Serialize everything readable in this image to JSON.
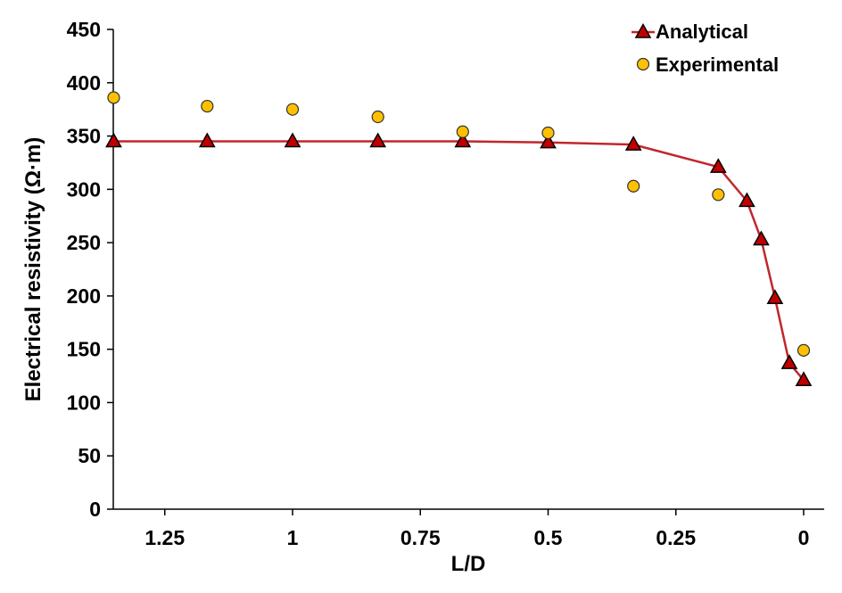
{
  "chart_data": {
    "type": "line",
    "xlabel": "L/D",
    "ylabel": "Electrical resistivity (Ω·m)",
    "xlim": [
      1.35,
      0
    ],
    "x_reversed": true,
    "ylim": [
      0,
      450
    ],
    "x_ticks": [
      1.25,
      1,
      0.75,
      0.5,
      0.25,
      0
    ],
    "x_tick_labels": [
      "1.25",
      "1",
      "0.75",
      "0.5",
      "0.25",
      "0"
    ],
    "y_ticks": [
      0,
      50,
      100,
      150,
      200,
      250,
      300,
      350,
      400,
      450
    ],
    "y_tick_labels": [
      "0",
      "50",
      "100",
      "150",
      "200",
      "250",
      "300",
      "350",
      "400",
      "450"
    ],
    "grid": false,
    "legend_position": "top-right",
    "series": [
      {
        "name": "Analytical",
        "marker": "triangle",
        "line": true,
        "marker_color": "#C00000",
        "line_color": "#C0272D",
        "points": [
          [
            1.35,
            345
          ],
          [
            1.167,
            345
          ],
          [
            1.0,
            345
          ],
          [
            0.833,
            345
          ],
          [
            0.667,
            345
          ],
          [
            0.5,
            344
          ],
          [
            0.333,
            342
          ],
          [
            0.167,
            321
          ],
          [
            0.111,
            289
          ],
          [
            0.083,
            253
          ],
          [
            0.056,
            198
          ],
          [
            0.028,
            137
          ],
          [
            0.0,
            121
          ]
        ]
      },
      {
        "name": "Experimental",
        "marker": "circle",
        "line": false,
        "marker_color": "#FFC000",
        "points": [
          [
            1.35,
            386
          ],
          [
            1.167,
            378
          ],
          [
            1.0,
            375
          ],
          [
            0.833,
            368
          ],
          [
            0.667,
            354
          ],
          [
            0.5,
            353
          ],
          [
            0.333,
            303
          ],
          [
            0.167,
            295
          ],
          [
            0.0,
            149
          ]
        ]
      }
    ]
  }
}
